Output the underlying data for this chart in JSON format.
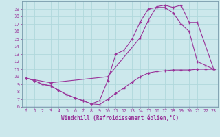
{
  "xlabel": "Windchill (Refroidissement éolien,°C)",
  "xlim": [
    -0.5,
    23.5
  ],
  "ylim": [
    6,
    20
  ],
  "xticks": [
    0,
    1,
    2,
    3,
    4,
    5,
    6,
    7,
    8,
    9,
    10,
    11,
    12,
    13,
    14,
    15,
    16,
    17,
    18,
    19,
    20,
    21,
    22,
    23
  ],
  "yticks": [
    6,
    7,
    8,
    9,
    10,
    11,
    12,
    13,
    14,
    15,
    16,
    17,
    18,
    19
  ],
  "background_color": "#cce8ec",
  "line_color": "#993399",
  "grid_color": "#b0d8dc",
  "line1_x": [
    0,
    1,
    2,
    3,
    4,
    5,
    6,
    7,
    8,
    9,
    10,
    11,
    12,
    13,
    14,
    15,
    16,
    17,
    18,
    19,
    20,
    21,
    22,
    23
  ],
  "line1_y": [
    9.8,
    9.5,
    9.0,
    8.8,
    8.2,
    7.6,
    7.2,
    6.8,
    6.4,
    6.3,
    7.0,
    7.8,
    8.5,
    9.3,
    10.0,
    10.5,
    10.7,
    10.8,
    10.9,
    10.9,
    10.9,
    11.0,
    11.0,
    11.0
  ],
  "line2_x": [
    0,
    1,
    2,
    3,
    4,
    5,
    6,
    7,
    8,
    9,
    10,
    11,
    12,
    13,
    14,
    15,
    16,
    17,
    18,
    19,
    20,
    21,
    22,
    23
  ],
  "line2_y": [
    9.8,
    9.5,
    9.0,
    8.8,
    8.2,
    7.6,
    7.2,
    6.8,
    6.4,
    6.8,
    9.5,
    13.0,
    13.5,
    15.0,
    17.3,
    19.0,
    19.2,
    19.2,
    18.5,
    17.0,
    16.0,
    12.0,
    11.5,
    11.0
  ],
  "line3_x": [
    0,
    3,
    10,
    14,
    15,
    16,
    17,
    18,
    19,
    20,
    21,
    23
  ],
  "line3_y": [
    9.8,
    9.2,
    10.0,
    15.2,
    17.5,
    19.3,
    19.5,
    19.2,
    19.5,
    17.2,
    17.2,
    11.0
  ]
}
